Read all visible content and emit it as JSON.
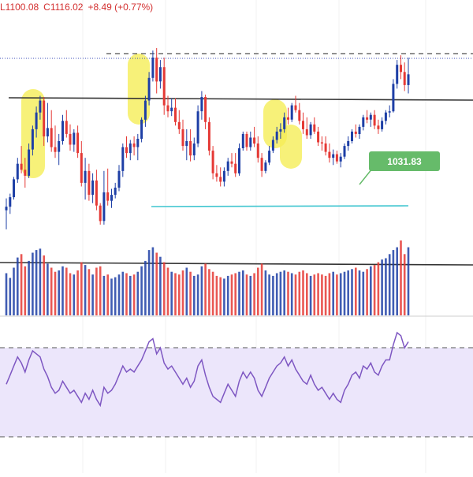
{
  "header": {
    "low": "L1100.08",
    "close": "C1116.02",
    "change": "+8.49 (+0.77%)"
  },
  "chart_data": [
    {
      "type": "candlestick",
      "title": "",
      "xlabel": "",
      "ylabel": "",
      "annotation_label": "1031.83",
      "up_color": "#1e3fa6",
      "down_color": "#e53935",
      "candles": [
        [
          1002,
          1012,
          986,
          1005
        ],
        [
          1005,
          1016,
          999,
          1013
        ],
        [
          1013,
          1030,
          1011,
          1028
        ],
        [
          1028,
          1046,
          1025,
          1041
        ],
        [
          1041,
          1056,
          1033,
          1036
        ],
        [
          1036,
          1046,
          1021,
          1031
        ],
        [
          1031,
          1058,
          1029,
          1053
        ],
        [
          1053,
          1073,
          1048,
          1070
        ],
        [
          1070,
          1089,
          1063,
          1084
        ],
        [
          1084,
          1098,
          1078,
          1094
        ],
        [
          1094,
          1097,
          1056,
          1064
        ],
        [
          1064,
          1092,
          1059,
          1071
        ],
        [
          1071,
          1086,
          1051,
          1055
        ],
        [
          1055,
          1073,
          1046,
          1051
        ],
        [
          1051,
          1066,
          1040,
          1060
        ],
        [
          1060,
          1082,
          1057,
          1077
        ],
        [
          1077,
          1086,
          1063,
          1066
        ],
        [
          1066,
          1074,
          1052,
          1057
        ],
        [
          1057,
          1070,
          1051,
          1067
        ],
        [
          1067,
          1073,
          1046,
          1050
        ],
        [
          1050,
          1060,
          1022,
          1025
        ],
        [
          1025,
          1046,
          1011,
          1035
        ],
        [
          1035,
          1041,
          1010,
          1015
        ],
        [
          1015,
          1033,
          1008,
          1027
        ],
        [
          1027,
          1036,
          1002,
          1006
        ],
        [
          1006,
          1008,
          990,
          993
        ],
        [
          993,
          1035,
          990,
          1017
        ],
        [
          1017,
          1037,
          1006,
          1010
        ],
        [
          1010,
          1020,
          1004,
          1015
        ],
        [
          1015,
          1025,
          1012,
          1021
        ],
        [
          1021,
          1040,
          1018,
          1035
        ],
        [
          1035,
          1058,
          1030,
          1055
        ],
        [
          1055,
          1064,
          1046,
          1050
        ],
        [
          1050,
          1061,
          1044,
          1058
        ],
        [
          1058,
          1064,
          1048,
          1055
        ],
        [
          1055,
          1066,
          1044,
          1062
        ],
        [
          1062,
          1080,
          1059,
          1078
        ],
        [
          1078,
          1098,
          1072,
          1094
        ],
        [
          1094,
          1118,
          1090,
          1113
        ],
        [
          1113,
          1136,
          1110,
          1130
        ],
        [
          1130,
          1138,
          1100,
          1110
        ],
        [
          1110,
          1128,
          1104,
          1122
        ],
        [
          1122,
          1130,
          1082,
          1090
        ],
        [
          1090,
          1098,
          1080,
          1085
        ],
        [
          1085,
          1096,
          1081,
          1088
        ],
        [
          1088,
          1096,
          1073,
          1076
        ],
        [
          1076,
          1086,
          1066,
          1070
        ],
        [
          1070,
          1078,
          1052,
          1056
        ],
        [
          1056,
          1070,
          1044,
          1060
        ],
        [
          1060,
          1070,
          1043,
          1048
        ],
        [
          1048,
          1063,
          1044,
          1058
        ],
        [
          1058,
          1090,
          1055,
          1085
        ],
        [
          1085,
          1102,
          1078,
          1097
        ],
        [
          1097,
          1099,
          1070,
          1076
        ],
        [
          1076,
          1080,
          1048,
          1052
        ],
        [
          1052,
          1056,
          1028,
          1033
        ],
        [
          1033,
          1040,
          1026,
          1030
        ],
        [
          1030,
          1038,
          1022,
          1026
        ],
        [
          1026,
          1038,
          1022,
          1035
        ],
        [
          1035,
          1046,
          1031,
          1043
        ],
        [
          1043,
          1050,
          1038,
          1041
        ],
        [
          1041,
          1050,
          1030,
          1033
        ],
        [
          1033,
          1058,
          1031,
          1054
        ],
        [
          1054,
          1068,
          1052,
          1066
        ],
        [
          1066,
          1068,
          1052,
          1055
        ],
        [
          1055,
          1068,
          1052,
          1063
        ],
        [
          1063,
          1072,
          1055,
          1058
        ],
        [
          1058,
          1064,
          1042,
          1046
        ],
        [
          1046,
          1050,
          1030,
          1035
        ],
        [
          1035,
          1044,
          1033,
          1042
        ],
        [
          1042,
          1056,
          1040,
          1052
        ],
        [
          1052,
          1064,
          1050,
          1061
        ],
        [
          1061,
          1072,
          1058,
          1068
        ],
        [
          1068,
          1075,
          1062,
          1070
        ],
        [
          1070,
          1084,
          1067,
          1080
        ],
        [
          1080,
          1088,
          1074,
          1078
        ],
        [
          1078,
          1092,
          1076,
          1090
        ],
        [
          1090,
          1098,
          1084,
          1086
        ],
        [
          1086,
          1092,
          1074,
          1077
        ],
        [
          1077,
          1084,
          1066,
          1070
        ],
        [
          1070,
          1080,
          1062,
          1065
        ],
        [
          1065,
          1076,
          1062,
          1074
        ],
        [
          1074,
          1080,
          1066,
          1068
        ],
        [
          1068,
          1072,
          1056,
          1059
        ],
        [
          1059,
          1064,
          1052,
          1058
        ],
        [
          1058,
          1064,
          1048,
          1051
        ],
        [
          1051,
          1058,
          1042,
          1046
        ],
        [
          1046,
          1053,
          1040,
          1049
        ],
        [
          1049,
          1052,
          1041,
          1043
        ],
        [
          1043,
          1050,
          1038,
          1047
        ],
        [
          1047,
          1058,
          1045,
          1056
        ],
        [
          1056,
          1064,
          1052,
          1060
        ],
        [
          1060,
          1070,
          1058,
          1068
        ],
        [
          1068,
          1074,
          1063,
          1066
        ],
        [
          1066,
          1074,
          1062,
          1072
        ],
        [
          1072,
          1082,
          1069,
          1080
        ],
        [
          1080,
          1086,
          1075,
          1078
        ],
        [
          1078,
          1084,
          1072,
          1082
        ],
        [
          1082,
          1086,
          1070,
          1073
        ],
        [
          1073,
          1078,
          1066,
          1070
        ],
        [
          1070,
          1080,
          1068,
          1077
        ],
        [
          1077,
          1086,
          1074,
          1084
        ],
        [
          1084,
          1090,
          1080,
          1085
        ],
        [
          1085,
          1112,
          1084,
          1108
        ],
        [
          1108,
          1128,
          1104,
          1124
        ],
        [
          1124,
          1132,
          1112,
          1118
        ],
        [
          1118,
          1126,
          1102,
          1107
        ],
        [
          1107,
          1130,
          1100,
          1116
        ]
      ],
      "volume": [
        62,
        55,
        70,
        85,
        90,
        72,
        80,
        92,
        96,
        98,
        88,
        76,
        70,
        64,
        66,
        72,
        70,
        62,
        60,
        66,
        78,
        74,
        68,
        60,
        70,
        72,
        58,
        60,
        54,
        56,
        60,
        64,
        62,
        58,
        60,
        64,
        72,
        80,
        96,
        100,
        92,
        86,
        78,
        70,
        64,
        62,
        60,
        66,
        70,
        64,
        58,
        60,
        72,
        76,
        68,
        64,
        58,
        56,
        54,
        58,
        60,
        62,
        64,
        66,
        60,
        58,
        62,
        70,
        76,
        66,
        60,
        58,
        62,
        64,
        66,
        64,
        62,
        60,
        64,
        66,
        62,
        58,
        60,
        62,
        60,
        58,
        62,
        64,
        60,
        62,
        64,
        66,
        68,
        70,
        66,
        64,
        68,
        72,
        74,
        78,
        82,
        84,
        90,
        96,
        100,
        110,
        90,
        100
      ],
      "rsi": [
        50,
        56,
        62,
        68,
        64,
        58,
        66,
        72,
        70,
        68,
        60,
        55,
        48,
        44,
        46,
        52,
        48,
        44,
        46,
        42,
        38,
        44,
        40,
        46,
        40,
        36,
        48,
        44,
        46,
        50,
        56,
        62,
        58,
        60,
        58,
        62,
        66,
        72,
        78,
        80,
        70,
        74,
        64,
        60,
        62,
        58,
        54,
        50,
        54,
        48,
        52,
        62,
        66,
        56,
        48,
        42,
        40,
        38,
        44,
        50,
        46,
        42,
        52,
        58,
        54,
        58,
        54,
        46,
        42,
        48,
        54,
        58,
        62,
        64,
        68,
        62,
        66,
        60,
        56,
        52,
        50,
        56,
        50,
        46,
        48,
        44,
        40,
        44,
        40,
        38,
        46,
        50,
        56,
        58,
        54,
        62,
        60,
        64,
        58,
        56,
        62,
        66,
        66,
        76,
        84,
        82,
        74,
        78
      ]
    }
  ]
}
